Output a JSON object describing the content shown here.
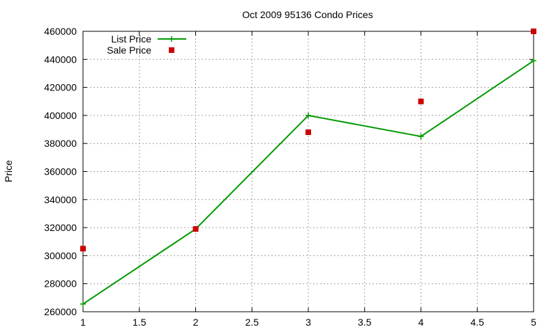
{
  "chart_data": {
    "type": "line",
    "title": "Oct 2009 95136 Condo Prices",
    "xlabel": "",
    "ylabel": "Price",
    "xlim": [
      1,
      5
    ],
    "ylim": [
      260000,
      460000
    ],
    "xticks": [
      1,
      1.5,
      2,
      2.5,
      3,
      3.5,
      4,
      4.5,
      5
    ],
    "xtick_labels": [
      "1",
      "1.5",
      "2",
      "2.5",
      "3",
      "3.5",
      "4",
      "4.5",
      "5"
    ],
    "yticks": [
      260000,
      280000,
      300000,
      320000,
      340000,
      360000,
      380000,
      400000,
      420000,
      440000,
      460000
    ],
    "ytick_labels": [
      "260000",
      "280000",
      "300000",
      "320000",
      "340000",
      "360000",
      "380000",
      "400000",
      "420000",
      "440000",
      "460000"
    ],
    "grid": true,
    "legend_position": "top-left",
    "series": [
      {
        "name": "List Price",
        "style": "linespoints",
        "color": "#009900",
        "x": [
          1,
          2,
          3,
          4,
          5
        ],
        "y": [
          265500,
          319000,
          400000,
          385000,
          439000
        ]
      },
      {
        "name": "Sale Price",
        "style": "points",
        "color": "#cc0000",
        "x": [
          1,
          2,
          3,
          4,
          5
        ],
        "y": [
          305000,
          319000,
          388000,
          410000,
          460000
        ]
      }
    ]
  }
}
